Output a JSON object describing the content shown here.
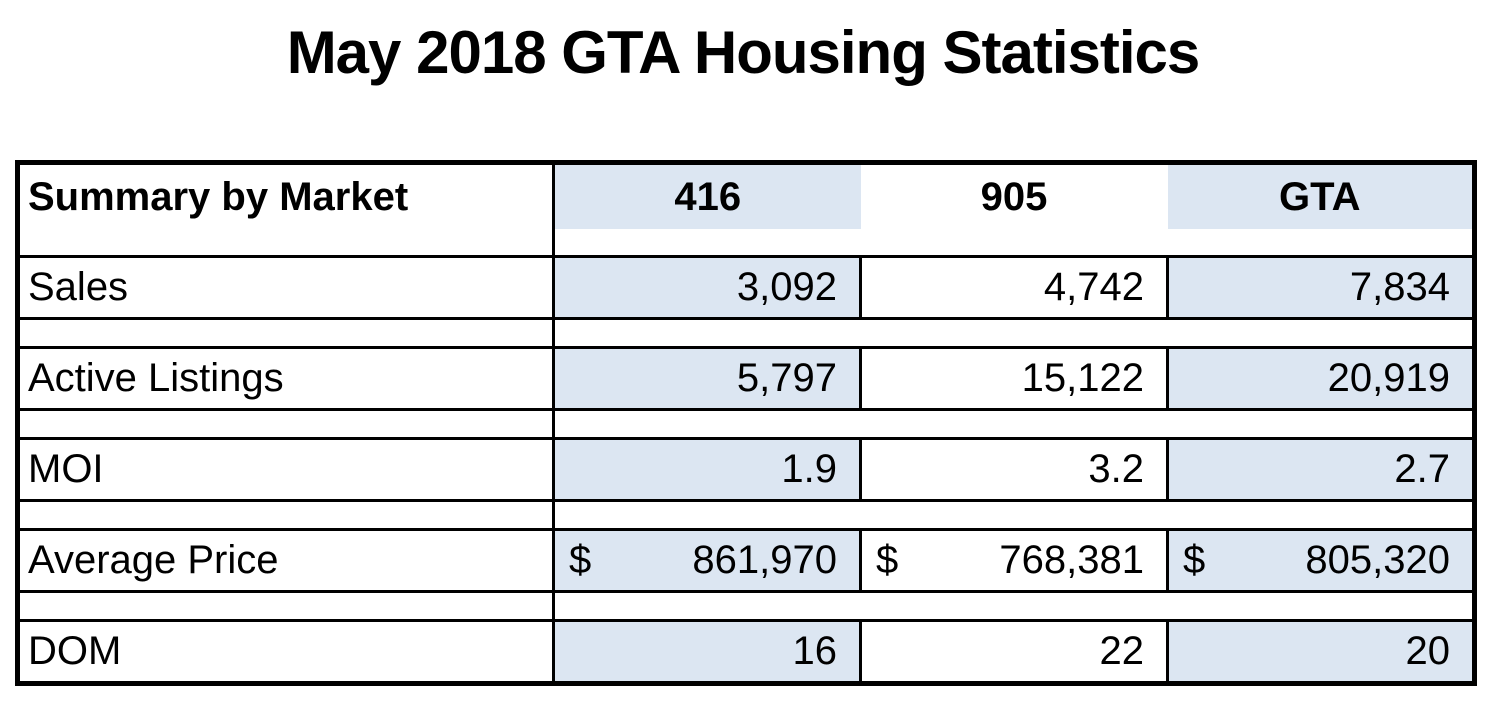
{
  "title": "May 2018 GTA Housing Statistics",
  "chart_data": {
    "type": "table",
    "title": "May 2018 GTA Housing Statistics",
    "header_label": "Summary by Market",
    "columns": [
      "416",
      "905",
      "GTA"
    ],
    "rows": [
      {
        "label": "Sales",
        "values": [
          "3,092",
          "4,742",
          "7,834"
        ]
      },
      {
        "label": "Active Listings",
        "values": [
          "5,797",
          "15,122",
          "20,919"
        ]
      },
      {
        "label": "MOI",
        "values": [
          "1.9",
          "3.2",
          "2.7"
        ]
      },
      {
        "label": "Average Price",
        "currency": "$",
        "values": [
          "861,970",
          "768,381",
          "805,320"
        ]
      },
      {
        "label": "DOM",
        "values": [
          "16",
          "22",
          "20"
        ]
      }
    ]
  },
  "colors": {
    "shade": "#dce6f2",
    "border": "#000000"
  }
}
